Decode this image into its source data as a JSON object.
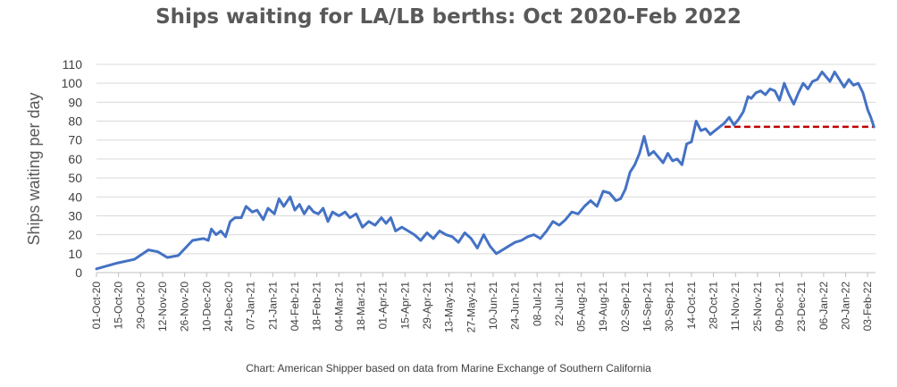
{
  "chart_data": {
    "type": "line",
    "title": "Ships waiting for LA/LB berths: Oct 2020-Feb 2022",
    "xlabel": "",
    "ylabel": "Ships waiting per day",
    "ylim": [
      0,
      110
    ],
    "yticks": [
      0,
      10,
      20,
      30,
      40,
      50,
      60,
      70,
      80,
      90,
      100,
      110
    ],
    "xticks": [
      "01-Oct-20",
      "15-Oct-20",
      "29-Oct-20",
      "12-Nov-20",
      "26-Nov-20",
      "10-Dec-20",
      "24-Dec-20",
      "07-Jan-21",
      "21-Jan-21",
      "04-Feb-21",
      "18-Feb-21",
      "04-Mar-21",
      "18-Mar-21",
      "01-Apr-21",
      "15-Apr-21",
      "29-Apr-21",
      "13-May-21",
      "27-May-21",
      "10-Jun-21",
      "24-Jun-21",
      "08-Jul-21",
      "22-Jul-21",
      "05-Aug-21",
      "19-Aug-21",
      "02-Sep-21",
      "16-Sep-21",
      "30-Sep-21",
      "14-Oct-21",
      "28-Oct-21",
      "11-Nov-21",
      "25-Nov-21",
      "09-Dec-21",
      "23-Dec-21",
      "06-Jan-22",
      "20-Jan-22",
      "03-Feb-22"
    ],
    "grid": true,
    "series": [
      {
        "color": "#4472C4",
        "x": [
          "2020-10-01",
          "2020-10-14",
          "2020-10-25",
          "2020-11-03",
          "2020-11-09",
          "2020-11-15",
          "2020-11-22",
          "2020-12-01",
          "2020-12-08",
          "2020-12-11",
          "2020-12-13",
          "2020-12-16",
          "2020-12-19",
          "2020-12-22",
          "2020-12-25",
          "2020-12-28",
          "2021-01-01",
          "2021-01-04",
          "2021-01-08",
          "2021-01-11",
          "2021-01-15",
          "2021-01-18",
          "2021-01-22",
          "2021-01-25",
          "2021-01-28",
          "2021-02-01",
          "2021-02-04",
          "2021-02-07",
          "2021-02-10",
          "2021-02-13",
          "2021-02-16",
          "2021-02-19",
          "2021-02-22",
          "2021-02-25",
          "2021-02-28",
          "2021-03-04",
          "2021-03-08",
          "2021-03-11",
          "2021-03-15",
          "2021-03-19",
          "2021-03-23",
          "2021-03-27",
          "2021-03-31",
          "2021-04-03",
          "2021-04-06",
          "2021-04-09",
          "2021-04-13",
          "2021-04-17",
          "2021-04-21",
          "2021-04-25",
          "2021-04-29",
          "2021-05-03",
          "2021-05-07",
          "2021-05-11",
          "2021-05-15",
          "2021-05-19",
          "2021-05-23",
          "2021-05-27",
          "2021-05-31",
          "2021-06-04",
          "2021-06-08",
          "2021-06-12",
          "2021-06-16",
          "2021-06-20",
          "2021-06-24",
          "2021-06-28",
          "2021-07-02",
          "2021-07-06",
          "2021-07-10",
          "2021-07-14",
          "2021-07-18",
          "2021-07-22",
          "2021-07-26",
          "2021-07-30",
          "2021-08-03",
          "2021-08-07",
          "2021-08-11",
          "2021-08-15",
          "2021-08-19",
          "2021-08-23",
          "2021-08-27",
          "2021-08-30",
          "2021-09-02",
          "2021-09-05",
          "2021-09-08",
          "2021-09-11",
          "2021-09-14",
          "2021-09-17",
          "2021-09-20",
          "2021-09-23",
          "2021-09-26",
          "2021-09-29",
          "2021-10-02",
          "2021-10-05",
          "2021-10-08",
          "2021-10-11",
          "2021-10-14",
          "2021-10-17",
          "2021-10-20",
          "2021-10-23",
          "2021-10-26",
          "2021-10-29",
          "2021-11-01",
          "2021-11-04",
          "2021-11-07",
          "2021-11-10",
          "2021-11-13",
          "2021-11-16",
          "2021-11-19",
          "2021-11-21",
          "2021-11-24",
          "2021-11-27",
          "2021-11-30",
          "2021-12-03",
          "2021-12-06",
          "2021-12-09",
          "2021-12-12",
          "2021-12-15",
          "2021-12-18",
          "2021-12-21",
          "2021-12-24",
          "2021-12-27",
          "2021-12-30",
          "2022-01-02",
          "2022-01-05",
          "2022-01-07",
          "2022-01-10",
          "2022-01-13",
          "2022-01-16",
          "2022-01-19",
          "2022-01-22",
          "2022-01-25",
          "2022-01-28",
          "2022-01-31",
          "2022-02-03",
          "2022-02-05",
          "2022-02-07"
        ],
        "y": [
          2,
          5,
          7,
          12,
          11,
          8,
          9,
          17,
          18,
          17,
          23,
          20,
          22,
          19,
          27,
          29,
          29,
          35,
          32,
          33,
          28,
          34,
          31,
          39,
          35,
          40,
          33,
          36,
          31,
          35,
          32,
          31,
          34,
          27,
          32,
          30,
          32,
          29,
          31,
          24,
          27,
          25,
          29,
          26,
          29,
          22,
          24,
          22,
          20,
          17,
          21,
          18,
          22,
          20,
          19,
          16,
          21,
          18,
          13,
          20,
          14,
          10,
          12,
          14,
          16,
          17,
          19,
          20,
          18,
          22,
          27,
          25,
          28,
          32,
          31,
          35,
          38,
          35,
          43,
          42,
          38,
          39,
          44,
          53,
          57,
          63,
          72,
          62,
          64,
          61,
          58,
          63,
          59,
          60,
          57,
          68,
          69,
          80,
          75,
          76,
          73,
          75,
          77,
          79,
          82,
          78,
          81,
          85,
          93,
          92,
          95,
          96,
          94,
          97,
          96,
          91,
          100,
          94,
          89,
          95,
          100,
          97,
          101,
          102,
          106,
          104,
          101,
          106,
          102,
          98,
          102,
          99,
          100,
          95,
          86,
          82,
          77
        ],
        "label_first": "",
        "label_last": ""
      }
    ],
    "reference_line": {
      "y": 77,
      "x_from": "2021-11-04",
      "x_to": "2022-02-07",
      "color": "#C00000",
      "style": "dashed"
    }
  },
  "source_note": "Chart: American Shipper based on data from Marine Exchange of Southern California"
}
